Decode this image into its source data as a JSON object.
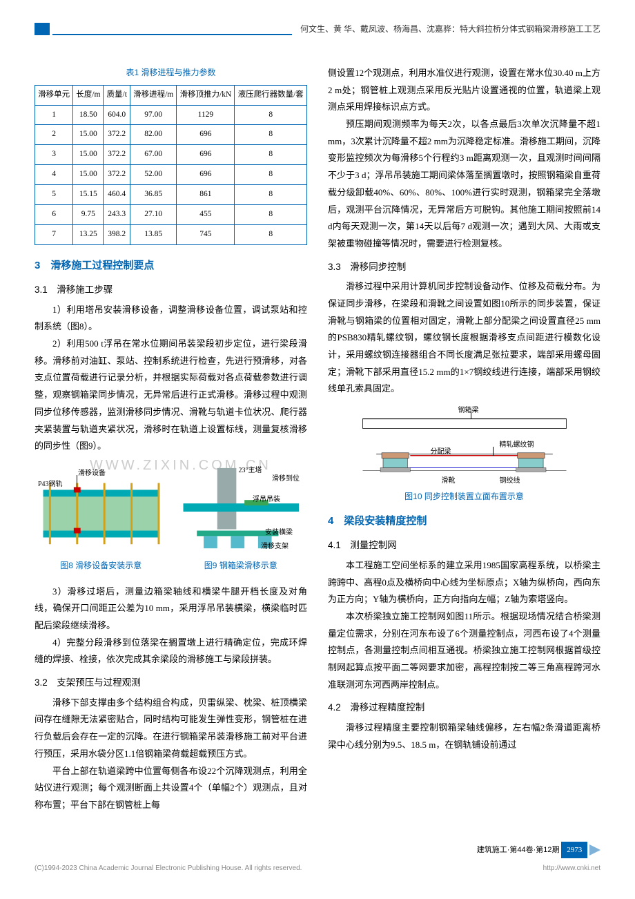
{
  "header": {
    "authors_title": "何文生、黄  华、戴凤波、杨海昌、沈嘉骅：特大斜拉桥分体式钢箱梁滑移施工工艺"
  },
  "table1": {
    "caption": "表1  滑移进程与推力参数",
    "columns": [
      "滑移单元",
      "长度/m",
      "质量/t",
      "滑移进程/m",
      "滑移顶推力/kN",
      "液压爬行器数量/套"
    ],
    "rows": [
      [
        "1",
        "18.50",
        "604.0",
        "97.00",
        "1129",
        "8"
      ],
      [
        "2",
        "15.00",
        "372.2",
        "82.00",
        "696",
        "8"
      ],
      [
        "3",
        "15.00",
        "372.2",
        "67.00",
        "696",
        "8"
      ],
      [
        "4",
        "15.00",
        "372.2",
        "52.00",
        "696",
        "8"
      ],
      [
        "5",
        "15.15",
        "460.4",
        "36.85",
        "861",
        "8"
      ],
      [
        "6",
        "9.75",
        "243.3",
        "27.10",
        "455",
        "8"
      ],
      [
        "7",
        "13.25",
        "398.2",
        "13.85",
        "745",
        "8"
      ]
    ]
  },
  "sec3": {
    "title": "3　滑移施工过程控制要点",
    "sub1": {
      "title": "3.1　滑移施工步骤",
      "p1": "1）利用塔吊安装滑移设备，调整滑移设备位置，调试泵站和控制系统（图8）。",
      "p2": "2）利用500 t浮吊在常水位期间吊装梁段初步定位，进行梁段滑移。滑移前对油缸、泵站、控制系统进行检查，先进行预滑移，对各支点位置荷载进行记录分析，并根据实际荷载对各点荷载参数进行调整，观察钢箱梁同步情况，无异常后进行正式滑移。滑移过程中观测同步位移传感器，监测滑移同步情况、滑靴与轨道卡位状况、爬行器夹紧装置与轨道夹紧状况，滑移时在轨道上设置标线，测量复核滑移的同步性（图9）。",
      "p3": "3）滑移过塔后，测量边箱梁轴线和横梁牛腿开档长度及对角线，确保开口间距正公差为10 mm，采用浮吊吊装横梁，横梁临时匹配后梁段继续滑移。",
      "p4": "4）完整分段滑移到位落梁在搁置墩上进行精确定位，完成环焊缝的焊接、栓接，依次完成其余梁段的滑移施工与梁段拼装。"
    },
    "sub2": {
      "title": "3.2　支架预压与过程观测",
      "p1": "滑移下部支撑由多个结构组合构成，贝雷纵梁、枕梁、桩顶横梁间存在缝隙无法紧密贴合，同时结构可能发生弹性变形，钢管桩在进行负载后会存在一定的沉降。在进行钢箱梁吊装滑移施工前对平台进行预压，采用水袋分区1.1倍钢箱梁荷载超载预压方式。",
      "p2": "平台上部在轨道梁跨中位置每侧各布设22个沉降观测点，利用全站仪进行观测；每个观测断面上共设置4个（单幅2个）观测点，且对称布置；平台下部在钢管桩上每"
    },
    "right_cont": {
      "p1": "侧设置12个观测点，利用水准仪进行观测，设置在常水位30.40 m上方2 m处；钢管桩上观测点采用反光贴片设置通视的位置，轨道梁上观测点采用焊接标识点方式。",
      "p2": "预压期间观测频率为每天2次，以各点最后3次单次沉降量不超1 mm，3次累计沉降量不超2 mm为沉降稳定标准。滑移施工期间，沉降变形监控频次为每滑移5个行程约3 m距离观测一次，且观测时间间隔不少于3 d；浮吊吊装施工期间梁体落至搁置墩时，按照钢箱梁自重荷载分级卸载40%、60%、80%、100%进行实时观测，钢箱梁完全落墩后，观测平台沉降情况，无异常后方可脱钩。其他施工期间按照前14 d内每天观测一次，第14天以后每7 d观测一次；遇到大风、大雨或支架被重物碰撞等情况时，需要进行检测复核。"
    },
    "sub3": {
      "title": "3.3　滑移同步控制",
      "p1": "滑移过程中采用计算机同步控制设备动作、位移及荷载分布。为保证同步滑移，在梁段和滑靴之间设置如图10所示的同步装置，保证滑靴与钢箱梁的位置相对固定，滑靴上部分配梁之间设置直径25 mm的PSB830精轧螺纹钢，螺纹钢长度根据滑移支点间距进行模数化设计，采用螺纹钢连接器组合不同长度满足张拉要求，端部采用螺母固定；滑靴下部采用直径15.2 mm的1×7钢绞线进行连接，端部采用钢绞线单孔索具固定。"
    }
  },
  "fig8": {
    "caption": "图8  滑移设备安装示意",
    "labels": {
      "l1": "滑移设备",
      "l2": "P43钢轨"
    }
  },
  "fig9": {
    "caption": "图9  钢箱梁滑移示意",
    "labels": {
      "l1": "23°主塔",
      "l2": "滑移到位",
      "l3": "浮吊吊装",
      "l4": "安装横梁",
      "l5": "滑移支架"
    }
  },
  "fig10": {
    "caption": "图10  同步控制装置立面布置示意",
    "labels": {
      "l1": "钢箱梁",
      "l2": "精轧螺纹钢",
      "l3": "分配梁",
      "l4": "滑靴",
      "l5": "钢绞线"
    }
  },
  "sec4": {
    "title": "4　梁段安装精度控制",
    "sub1": {
      "title": "4.1　测量控制网",
      "p1": "本工程施工空间坐标系的建立采用1985国家高程系统，以桥梁主跨跨中、高程0点及横桥向中心线为坐标原点；X轴为纵桥向，西向东为正方向；Y轴为横桥向，正方向指向左幅；Z轴为索塔竖向。",
      "p2": "本次桥梁独立施工控制网如图11所示。根据现场情况结合桥梁测量定位需求，分别在河东布设了6个测量控制点，河西布设了4个测量控制点，各测量控制点间相互通视。桥梁独立施工控制网根据首级控制网起算点按平面二等网要求加密，高程控制按二等三角高程跨河水准联测河东河西两岸控制点。"
    },
    "sub2": {
      "title": "4.2　滑移过程精度控制",
      "p1": "滑移过程精度主要控制钢箱梁轴线偏移，左右幅2条滑道距离桥梁中心线分别为9.5、18.5 m，在钢轨铺设前通过"
    }
  },
  "footer": {
    "journal": "建筑施工·第44卷·第12期",
    "page": "2973",
    "copyright": "(C)1994-2023 China Academic Journal Electronic Publishing House. All rights reserved.",
    "url": "http://www.cnki.net"
  },
  "watermark": "WWW.ZIXIN.COM.CN"
}
